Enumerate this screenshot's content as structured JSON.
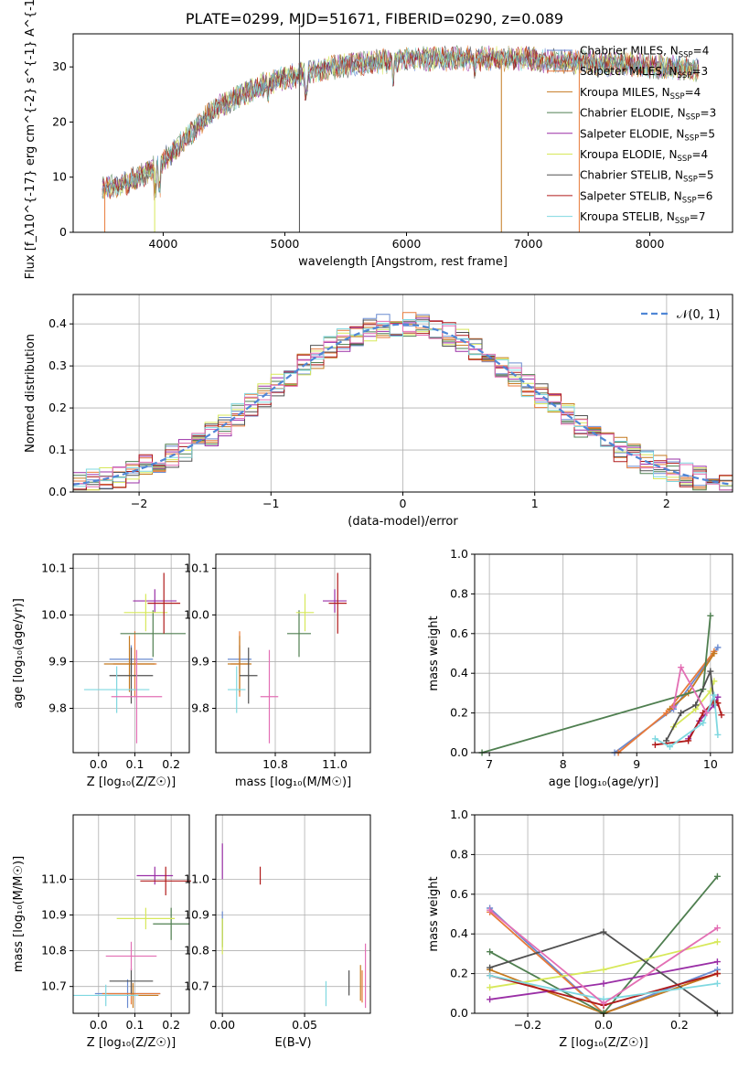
{
  "title": "PLATE=0299, MJD=51671, FIBERID=0290, z=0.089",
  "colors": {
    "chabrier_miles": "#6a8bd0",
    "salpeter_miles": "#e87a3a",
    "kroupa_miles": "#c47a20",
    "chabrier_elodie": "#4f7f50",
    "salpeter_elodie": "#9a2fa6",
    "kroupa_elodie": "#d7e85a",
    "chabrier_stelib": "#505050",
    "salpeter_stelib": "#b01a1a",
    "kroupa_stelib": "#7fd8e0",
    "extra_pink": "#e36fb4",
    "normal_curve": "#4f86d6"
  },
  "chart_data": [
    {
      "id": "spectrum",
      "type": "line",
      "xlabel": "wavelength [Angstrom, rest frame]",
      "ylabel": "Flux [f_λ10^{-17} erg cm^{-2} s^{-1} A^{-1}]",
      "xlim": [
        3260,
        8680
      ],
      "ylim": [
        0,
        36
      ],
      "xticks": [
        4000,
        5000,
        6000,
        7000,
        8000
      ],
      "yticks": [
        0,
        10,
        20,
        30
      ],
      "legend_position": "right",
      "legend": [
        {
          "label": "Chabrier MILES, N",
          "sub": "SSP",
          "tail": "=4",
          "color": "#6a8bd0"
        },
        {
          "label": "Salpeter MILES, N",
          "sub": "SSP",
          "tail": "=3",
          "color": "#e87a3a"
        },
        {
          "label": "Kroupa MILES, N",
          "sub": "SSP",
          "tail": "=4",
          "color": "#c47a20"
        },
        {
          "label": "Chabrier ELODIE, N",
          "sub": "SSP",
          "tail": "=3",
          "color": "#4f7f50"
        },
        {
          "label": "Salpeter ELODIE, N",
          "sub": "SSP",
          "tail": "=5",
          "color": "#9a2fa6"
        },
        {
          "label": "Kroupa ELODIE, N",
          "sub": "SSP",
          "tail": "=4",
          "color": "#d7e85a"
        },
        {
          "label": "Chabrier STELIB, N",
          "sub": "SSP",
          "tail": "=5",
          "color": "#505050"
        },
        {
          "label": "Salpeter STELIB, N",
          "sub": "SSP",
          "tail": "=6",
          "color": "#b01a1a"
        },
        {
          "label": "Kroupa STELIB, N",
          "sub": "SSP",
          "tail": "=7",
          "color": "#7fd8e0"
        }
      ],
      "continuum": {
        "x": [
          3500,
          3650,
          3800,
          3950,
          4100,
          4250,
          4400,
          4600,
          4800,
          5000,
          5200,
          5400,
          5600,
          5800,
          6000,
          6200,
          6400,
          6600,
          6800,
          7000,
          7200,
          7400,
          7600,
          7800,
          8000,
          8200,
          8400
        ],
        "y": [
          8,
          8.5,
          10,
          12,
          15,
          18.5,
          22,
          24.5,
          26.5,
          28,
          29,
          30,
          30.5,
          31,
          31.5,
          31.5,
          31.5,
          31.5,
          31.5,
          31.5,
          31,
          31,
          30.5,
          30.5,
          30,
          30,
          29.5
        ]
      }
    },
    {
      "id": "residuals",
      "type": "histogram",
      "xlabel": "(data-model)/error",
      "ylabel": "Normed distribution",
      "xlim": [
        -2.5,
        2.5
      ],
      "ylim": [
        0,
        0.47
      ],
      "xticks": [
        -2,
        -1,
        0,
        1,
        2
      ],
      "xtick_labels": [
        "−2",
        "−1",
        "0",
        "1",
        "2"
      ],
      "yticks": [
        0.0,
        0.1,
        0.2,
        0.3,
        0.4
      ],
      "ytick_labels": [
        "0.0",
        "0.1",
        "0.2",
        "0.3",
        "0.4"
      ],
      "legend_position": "top-right",
      "legend": [
        {
          "label": "𝒩(0, 1)",
          "color": "#4f86d6",
          "style": "dashed"
        }
      ],
      "bin_edges_start": -2.5,
      "bin_width": 0.1,
      "bin_count": 50
    },
    {
      "id": "age_vs_Z",
      "type": "errorbar",
      "xlabel": "Z [log₁₀(Z/Z☉)]",
      "ylabel": "age  [log₁₀(age/yr)]",
      "xlim": [
        -0.07,
        0.25
      ],
      "ylim": [
        9.705,
        10.13
      ],
      "xticks": [
        0.0,
        0.1,
        0.2
      ],
      "xtick_labels": [
        "0.0",
        "0.1",
        "0.2"
      ],
      "yticks": [
        9.8,
        9.9,
        10.0,
        10.1
      ],
      "ytick_labels": [
        "9.8",
        "9.9",
        "10.0",
        "10.1"
      ],
      "points": [
        {
          "x": 0.09,
          "y": 9.905,
          "xerr": 0.06,
          "yerr": 0.03,
          "color": "#6a8bd0"
        },
        {
          "x": 0.1,
          "y": 9.895,
          "xerr": 0.06,
          "yerr": 0.07,
          "color": "#e87a3a"
        },
        {
          "x": 0.085,
          "y": 9.895,
          "xerr": 0.07,
          "yerr": 0.06,
          "color": "#c47a20"
        },
        {
          "x": 0.15,
          "y": 9.96,
          "xerr": 0.09,
          "yerr": 0.05,
          "color": "#4f7f50"
        },
        {
          "x": 0.155,
          "y": 10.03,
          "xerr": 0.06,
          "yerr": 0.025,
          "color": "#9a2fa6"
        },
        {
          "x": 0.13,
          "y": 10.005,
          "xerr": 0.06,
          "yerr": 0.04,
          "color": "#d7e85a"
        },
        {
          "x": 0.09,
          "y": 9.87,
          "xerr": 0.06,
          "yerr": 0.06,
          "color": "#505050"
        },
        {
          "x": 0.18,
          "y": 10.025,
          "xerr": 0.045,
          "yerr": 0.065,
          "color": "#b01a1a"
        },
        {
          "x": 0.05,
          "y": 9.84,
          "xerr": 0.09,
          "yerr": 0.05,
          "color": "#7fd8e0"
        },
        {
          "x": 0.105,
          "y": 9.825,
          "xerr": 0.07,
          "yerr": 0.1,
          "color": "#e36fb4"
        }
      ]
    },
    {
      "id": "age_vs_mass",
      "type": "errorbar",
      "xlabel": "mass [log₁₀(M/M☉)]",
      "ylabel": "",
      "xlim": [
        10.6,
        11.12
      ],
      "ylim": [
        9.705,
        10.13
      ],
      "xticks": [
        10.8,
        11.0
      ],
      "xtick_labels": [
        "10.8",
        "11.0"
      ],
      "yticks": [
        9.8,
        9.9,
        10.0,
        10.1
      ],
      "ytick_labels": [
        "9.8",
        "9.9",
        "10.0",
        "10.1"
      ],
      "points": [
        {
          "x": 10.68,
          "y": 9.905,
          "xerr": 0.04,
          "yerr": 0.03,
          "color": "#6a8bd0"
        },
        {
          "x": 10.68,
          "y": 9.895,
          "xerr": 0.03,
          "yerr": 0.07,
          "color": "#e87a3a"
        },
        {
          "x": 10.68,
          "y": 9.895,
          "xerr": 0.04,
          "yerr": 0.06,
          "color": "#c47a20"
        },
        {
          "x": 10.88,
          "y": 9.96,
          "xerr": 0.04,
          "yerr": 0.05,
          "color": "#4f7f50"
        },
        {
          "x": 11.0,
          "y": 10.03,
          "xerr": 0.04,
          "yerr": 0.025,
          "color": "#9a2fa6"
        },
        {
          "x": 10.9,
          "y": 10.005,
          "xerr": 0.03,
          "yerr": 0.04,
          "color": "#d7e85a"
        },
        {
          "x": 10.71,
          "y": 9.87,
          "xerr": 0.03,
          "yerr": 0.06,
          "color": "#505050"
        },
        {
          "x": 11.01,
          "y": 10.025,
          "xerr": 0.03,
          "yerr": 0.065,
          "color": "#b01a1a"
        },
        {
          "x": 10.67,
          "y": 9.84,
          "xerr": 0.03,
          "yerr": 0.05,
          "color": "#7fd8e0"
        },
        {
          "x": 10.78,
          "y": 9.825,
          "xerr": 0.03,
          "yerr": 0.1,
          "color": "#e36fb4"
        }
      ]
    },
    {
      "id": "mass_weight_vs_age",
      "type": "line",
      "xlabel": "age  [log₁₀(age/yr)]",
      "ylabel": "mass weight",
      "xlim": [
        6.8,
        10.3
      ],
      "ylim": [
        0,
        1.0
      ],
      "xticks": [
        7,
        8,
        9,
        10
      ],
      "xtick_labels": [
        "7",
        "8",
        "9",
        "10"
      ],
      "yticks": [
        0.0,
        0.2,
        0.4,
        0.6,
        0.8,
        1.0
      ],
      "ytick_labels": [
        "0.0",
        "0.2",
        "0.4",
        "0.6",
        "0.8",
        "1.0"
      ],
      "series": [
        {
          "x": [
            8.7,
            9.5,
            10.1
          ],
          "y": [
            0.0,
            0.22,
            0.53
          ],
          "color": "#6a8bd0"
        },
        {
          "x": [
            8.75,
            9.4,
            10.05
          ],
          "y": [
            0.0,
            0.2,
            0.51
          ],
          "color": "#e87a3a"
        },
        {
          "x": [
            9.45,
            9.7,
            10.05
          ],
          "y": [
            0.22,
            0.3,
            0.5
          ],
          "color": "#c47a20"
        },
        {
          "x": [
            6.9,
            9.9,
            10.0
          ],
          "y": [
            0.0,
            0.32,
            0.69
          ],
          "color": "#4f7f50"
        },
        {
          "x": [
            9.7,
            9.85,
            10.05,
            10.1
          ],
          "y": [
            0.07,
            0.16,
            0.24,
            0.28
          ],
          "color": "#9a2fa6"
        },
        {
          "x": [
            9.5,
            9.8,
            10.0,
            10.05
          ],
          "y": [
            0.13,
            0.22,
            0.31,
            0.36
          ],
          "color": "#d7e85a"
        },
        {
          "x": [
            9.4,
            9.6,
            9.8,
            10.0,
            10.05
          ],
          "y": [
            0.06,
            0.2,
            0.24,
            0.41,
            0.25
          ],
          "color": "#505050"
        },
        {
          "x": [
            9.25,
            9.7,
            9.9,
            10.05,
            10.1,
            10.15
          ],
          "y": [
            0.04,
            0.06,
            0.2,
            0.26,
            0.25,
            0.19
          ],
          "color": "#b01a1a"
        },
        {
          "x": [
            9.25,
            9.45,
            9.9,
            10.05,
            10.1
          ],
          "y": [
            0.07,
            0.03,
            0.15,
            0.29,
            0.09
          ],
          "color": "#7fd8e0"
        },
        {
          "x": [
            9.5,
            9.6,
            9.95
          ],
          "y": [
            0.23,
            0.43,
            0.2
          ],
          "color": "#e36fb4"
        }
      ]
    },
    {
      "id": "mass_vs_Z",
      "type": "errorbar",
      "xlabel": "Z [log₁₀(Z/Z☉)]",
      "ylabel": "mass [log₁₀(M/M☉)]",
      "xlim": [
        -0.07,
        0.25
      ],
      "ylim": [
        10.625,
        11.18
      ],
      "xticks": [
        0.0,
        0.1,
        0.2
      ],
      "xtick_labels": [
        "0.0",
        "0.1",
        "0.2"
      ],
      "yticks": [
        10.7,
        10.8,
        10.9,
        11.0
      ],
      "ytick_labels": [
        "10.7",
        "10.8",
        "10.9",
        "11.0"
      ],
      "points": [
        {
          "x": 0.08,
          "y": 10.68,
          "xerr": 0.09,
          "yerr": 0.04,
          "color": "#6a8bd0"
        },
        {
          "x": 0.09,
          "y": 10.68,
          "xerr": 0.08,
          "yerr": 0.03,
          "color": "#e87a3a"
        },
        {
          "x": 0.095,
          "y": 10.675,
          "xerr": 0.07,
          "yerr": 0.035,
          "color": "#c47a20"
        },
        {
          "x": 0.2,
          "y": 10.875,
          "xerr": 0.05,
          "yerr": 0.045,
          "color": "#4f7f50"
        },
        {
          "x": 0.155,
          "y": 11.01,
          "xerr": 0.05,
          "yerr": 0.025,
          "color": "#9a2fa6"
        },
        {
          "x": 0.13,
          "y": 10.89,
          "xerr": 0.08,
          "yerr": 0.03,
          "color": "#d7e85a"
        },
        {
          "x": 0.09,
          "y": 10.715,
          "xerr": 0.06,
          "yerr": 0.035,
          "color": "#505050"
        },
        {
          "x": 0.185,
          "y": 10.995,
          "xerr": 0.07,
          "yerr": 0.04,
          "color": "#b01a1a"
        },
        {
          "x": 0.02,
          "y": 10.675,
          "xerr": 0.09,
          "yerr": 0.03,
          "color": "#7fd8e0"
        },
        {
          "x": 0.09,
          "y": 10.785,
          "xerr": 0.07,
          "yerr": 0.04,
          "color": "#e36fb4"
        }
      ]
    },
    {
      "id": "mass_vs_ebv",
      "type": "errorbar",
      "xlabel": "E(B-V)",
      "ylabel": "",
      "xlim": [
        -0.004,
        0.09
      ],
      "ylim": [
        10.625,
        11.18
      ],
      "xticks": [
        0.0,
        0.05
      ],
      "xtick_labels": [
        "0.00",
        "0.05"
      ],
      "yticks": [
        10.7,
        10.8,
        10.9,
        11.0
      ],
      "ytick_labels": [
        "10.7",
        "10.8",
        "10.9",
        "11.0"
      ],
      "points": [
        {
          "x": 0.0,
          "y": 10.87,
          "xerr": 0,
          "yerr": 0.04,
          "color": "#6a8bd0"
        },
        {
          "x": 0.0,
          "y": 10.85,
          "xerr": 0,
          "yerr": 0.04,
          "color": "#4f7f50"
        },
        {
          "x": 0.0,
          "y": 11.05,
          "xerr": 0,
          "yerr": 0.05,
          "color": "#9a2fa6"
        },
        {
          "x": 0.0,
          "y": 10.84,
          "xerr": 0,
          "yerr": 0.05,
          "color": "#d7e85a"
        },
        {
          "x": 0.023,
          "y": 11.01,
          "xerr": 0,
          "yerr": 0.025,
          "color": "#b01a1a"
        },
        {
          "x": 0.063,
          "y": 10.68,
          "xerr": 0,
          "yerr": 0.035,
          "color": "#7fd8e0"
        },
        {
          "x": 0.077,
          "y": 10.71,
          "xerr": 0,
          "yerr": 0.035,
          "color": "#505050"
        },
        {
          "x": 0.084,
          "y": 10.71,
          "xerr": 0,
          "yerr": 0.05,
          "color": "#c47a20"
        },
        {
          "x": 0.087,
          "y": 10.73,
          "xerr": 0,
          "yerr": 0.09,
          "color": "#e36fb4"
        },
        {
          "x": 0.085,
          "y": 10.7,
          "xerr": 0,
          "yerr": 0.045,
          "color": "#e87a3a"
        }
      ]
    },
    {
      "id": "mass_weight_vs_Z",
      "type": "line",
      "xlabel": "Z [log₁₀(Z/Z☉)]",
      "ylabel": "mass weight",
      "xlim": [
        -0.34,
        0.34
      ],
      "ylim": [
        0,
        1.0
      ],
      "xticks": [
        -0.2,
        0.0,
        0.2
      ],
      "xtick_labels": [
        "−0.2",
        "0.0",
        "0.2"
      ],
      "yticks": [
        0.0,
        0.2,
        0.4,
        0.6,
        0.8,
        1.0
      ],
      "ytick_labels": [
        "0.0",
        "0.2",
        "0.4",
        "0.6",
        "0.8",
        "1.0"
      ],
      "series": [
        {
          "x": [
            -0.3,
            0.0,
            0.3
          ],
          "y": [
            0.53,
            0.0,
            0.22
          ],
          "color": "#6a8bd0"
        },
        {
          "x": [
            -0.3,
            0.0,
            0.3
          ],
          "y": [
            0.51,
            0.0,
            0.2
          ],
          "color": "#e87a3a"
        },
        {
          "x": [
            -0.3,
            0.0,
            0.3
          ],
          "y": [
            0.22,
            0.0,
            0.2
          ],
          "color": "#c47a20"
        },
        {
          "x": [
            -0.3,
            0.0,
            0.3
          ],
          "y": [
            0.31,
            0.0,
            0.69
          ],
          "color": "#4f7f50"
        },
        {
          "x": [
            -0.3,
            0.0,
            0.3
          ],
          "y": [
            0.07,
            0.15,
            0.26
          ],
          "color": "#9a2fa6"
        },
        {
          "x": [
            -0.3,
            0.0,
            0.3
          ],
          "y": [
            0.13,
            0.22,
            0.36
          ],
          "color": "#d7e85a"
        },
        {
          "x": [
            -0.3,
            0.0,
            0.3
          ],
          "y": [
            0.23,
            0.41,
            0.0
          ],
          "color": "#505050"
        },
        {
          "x": [
            -0.3,
            0.0,
            0.3
          ],
          "y": [
            0.19,
            0.04,
            0.2
          ],
          "color": "#b01a1a"
        },
        {
          "x": [
            -0.3,
            0.0,
            0.3
          ],
          "y": [
            0.19,
            0.07,
            0.15
          ],
          "color": "#7fd8e0"
        },
        {
          "x": [
            -0.3,
            0.0,
            0.3
          ],
          "y": [
            0.52,
            0.05,
            0.43
          ],
          "color": "#e36fb4"
        }
      ]
    }
  ]
}
